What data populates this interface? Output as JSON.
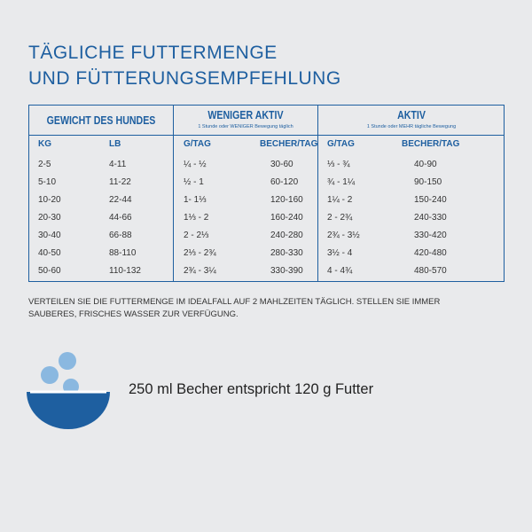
{
  "header": {
    "title_lines": [
      "TÄGLICHE FUTTERMENGE",
      "UND FÜTTERUNGSEMPFEHLUNG"
    ]
  },
  "table": {
    "groups": [
      {
        "title": "GEWICHT DES HUNDES"
      },
      {
        "title": "WENIGER AKTIV",
        "subtitle": "1 Stunde oder WENIGER Bewegung täglich"
      },
      {
        "title": "AKTIV",
        "subtitle": "1 Stunde oder MEHR tägliche Bewegung"
      }
    ],
    "columns": [
      "KG",
      "LB",
      "G/TAG",
      "BECHER/TAG",
      "G/TAG",
      "BECHER/TAG"
    ],
    "rows": [
      [
        "2-5",
        "4-11",
        "¼ - ½",
        "30-60",
        "⅓ - ¾",
        "40-90"
      ],
      [
        "5-10",
        "11-22",
        "½ - 1",
        "60-120",
        "¾ - 1¼",
        "90-150"
      ],
      [
        "10-20",
        "22-44",
        "1- 1⅓",
        "120-160",
        "1¼ - 2",
        "150-240"
      ],
      [
        "20-30",
        "44-66",
        "1⅓ - 2",
        "160-240",
        "2 - 2¾",
        "240-330"
      ],
      [
        "30-40",
        "66-88",
        "2 - 2⅓",
        "240-280",
        "2¾ - 3½",
        "330-420"
      ],
      [
        "40-50",
        "88-110",
        "2⅓ - 2¾",
        "280-330",
        "3½ - 4",
        "420-480"
      ],
      [
        "50-60",
        "110-132",
        "2¾ - 3¼",
        "330-390",
        "4 - 4¾",
        "480-570"
      ]
    ]
  },
  "note": "VERTEILEN SIE DIE FUTTERMENGE IM IDEALFALL AUF 2 MAHLZEITEN TÄGLICH. STELLEN SIE IMMER SAUBERES, FRISCHES WASSER ZUR VERFÜGUNG.",
  "footer": {
    "text": "250 ml Becher entspricht 120 g Futter"
  }
}
